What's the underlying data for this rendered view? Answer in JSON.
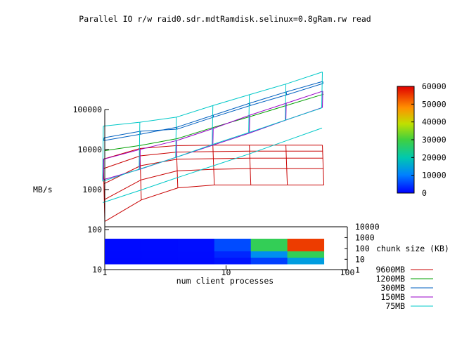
{
  "chart_data": {
    "type": "line",
    "title": "Parallel IO r/w raid0.sdr.mdtRamdisk.selinux=0.8gRam.rw read",
    "xlabel": "num client processes",
    "ylabel": "MB/s",
    "zlabel": "chunk size (KB)",
    "x_scale": "log",
    "y_scale": "log",
    "z_scale": "log",
    "xlim": [
      1,
      100
    ],
    "ylim": [
      10,
      100000
    ],
    "zlim": [
      1,
      10000
    ],
    "x_ticks": [
      "1",
      "10",
      "100"
    ],
    "y_ticks": [
      "10",
      "100",
      "1000",
      "10000",
      "100000"
    ],
    "z_ticks": [
      "1",
      "10",
      "100",
      "1000",
      "10000"
    ],
    "x": [
      1,
      2,
      4,
      8,
      16,
      32,
      64
    ],
    "chunk_sizes": [
      1,
      4,
      16,
      64,
      256,
      1024,
      4096
    ],
    "series": [
      {
        "name": "9600MB",
        "color": "#c80000",
        "rows": [
          [
            160,
            550,
            1100,
            1300,
            1300,
            1300,
            1300
          ],
          [
            420,
            1300,
            2200,
            2400,
            2500,
            2500,
            2500
          ],
          [
            780,
            2200,
            3200,
            3300,
            3400,
            3400,
            3400
          ],
          [
            1400,
            2900,
            3600,
            3700,
            3800,
            3800,
            3800
          ],
          [
            1800,
            3300,
            3900,
            4000,
            4000,
            4000,
            4000
          ]
        ]
      },
      {
        "name": "1200MB",
        "color": "#00a000",
        "rows": [
          [
            7000,
            9500,
            14000,
            27000,
            50000,
            95000,
            180000
          ]
        ]
      },
      {
        "name": "300MB",
        "color": "#0060c0",
        "rows": [
          [
            11000,
            16000,
            18000,
            36000,
            70000,
            130000,
            250000
          ],
          [
            7000,
            10000,
            15000,
            30000,
            60000,
            115000,
            210000
          ]
        ]
      },
      {
        "name": "150MB",
        "color": "#9a00c8",
        "rows": [
          [
            2400,
            4200,
            7000,
            14000,
            30000,
            60000,
            120000
          ],
          [
            550,
            1000,
            2000,
            4000,
            8000,
            17000,
            35000
          ]
        ]
      },
      {
        "name": "75MB",
        "color": "#00c8c8",
        "rows": [
          [
            12000,
            15000,
            20000,
            39000,
            73000,
            135000,
            270000
          ],
          [
            110,
            220,
            450,
            900,
            1800,
            3800,
            8000
          ],
          [
            280,
            560,
            1100,
            2300,
            4600,
            9400,
            19000
          ]
        ]
      }
    ],
    "heatmap_strip": [
      [
        800,
        900,
        1000,
        6000,
        28000,
        55000
      ],
      [
        700,
        800,
        900,
        3000,
        12000,
        28000
      ],
      [
        600,
        700,
        800,
        1500,
        5000,
        14000
      ]
    ],
    "colorbar": {
      "range": [
        0,
        60000
      ],
      "ticks": [
        "0",
        "10000",
        "20000",
        "30000",
        "40000",
        "50000",
        "60000"
      ]
    },
    "legend_position": "bottom-right",
    "grid": false
  }
}
